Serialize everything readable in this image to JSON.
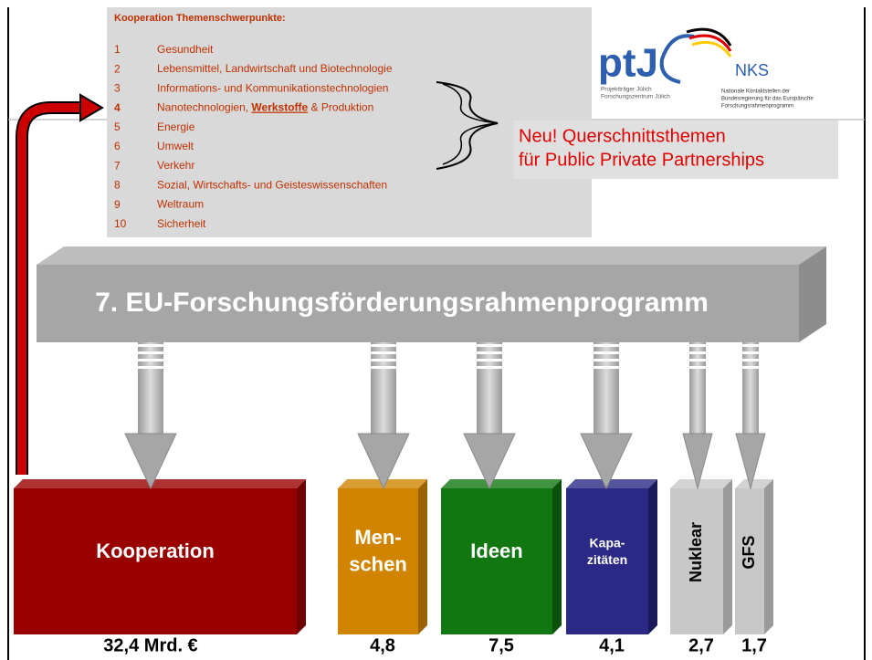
{
  "panel": {
    "title": "Kooperation Themenschwerpunkte:",
    "items": [
      {
        "number": "1",
        "label": [
          "Gesundheit"
        ]
      },
      {
        "number": "2",
        "label": [
          "Lebensmittel, Landwirtschaft und Biotechnologie"
        ]
      },
      {
        "number": "3",
        "label": [
          "Informations- und Kommunikationstechnologien"
        ]
      },
      {
        "number": "4",
        "label": [
          "Nanotechnologien, ",
          "Werkstoffe",
          " & Produktion"
        ]
      },
      {
        "number": "5",
        "label": [
          "Energie"
        ]
      },
      {
        "number": "6",
        "label": [
          "Umwelt"
        ]
      },
      {
        "number": "7",
        "label": [
          "Verkehr"
        ]
      },
      {
        "number": "8",
        "label": [
          "Sozial, Wirtschafts- und Geisteswissenschaften"
        ]
      },
      {
        "number": "9",
        "label": [
          "Weltraum"
        ]
      },
      {
        "number": "10",
        "label": [
          "Sicherheit"
        ]
      }
    ]
  },
  "logos": {
    "ptj": "ptJ",
    "ptj_lines": [
      "Projektträger Jülich",
      "Forschungszentrum Jülich"
    ],
    "nks": "NKS",
    "nks_lines": [
      "Nationale Kontaktstellen der",
      "Bundesregierung für das Europäische",
      "Forschungsrahmenprogramm"
    ]
  },
  "callout": [
    "Neu! Querschnittsthemen",
    "für Public Private Partnerships"
  ],
  "banner": "7. EU-Forschungsförderungsrahmenprogramm",
  "blocks": [
    {
      "label": [
        "Kooperation"
      ],
      "amount": "32,4 Mrd. €"
    },
    {
      "label": [
        "Men-",
        "schen"
      ],
      "amount": "4,8"
    },
    {
      "label": [
        "Ideen"
      ],
      "amount": "7,5"
    },
    {
      "label": [
        "Kapa-",
        "zitäten"
      ],
      "amount": "4,1"
    },
    {
      "label": [
        "Nuklear"
      ],
      "amount": "2,7"
    },
    {
      "label": [
        "GFS"
      ],
      "amount": "1,7"
    }
  ]
}
